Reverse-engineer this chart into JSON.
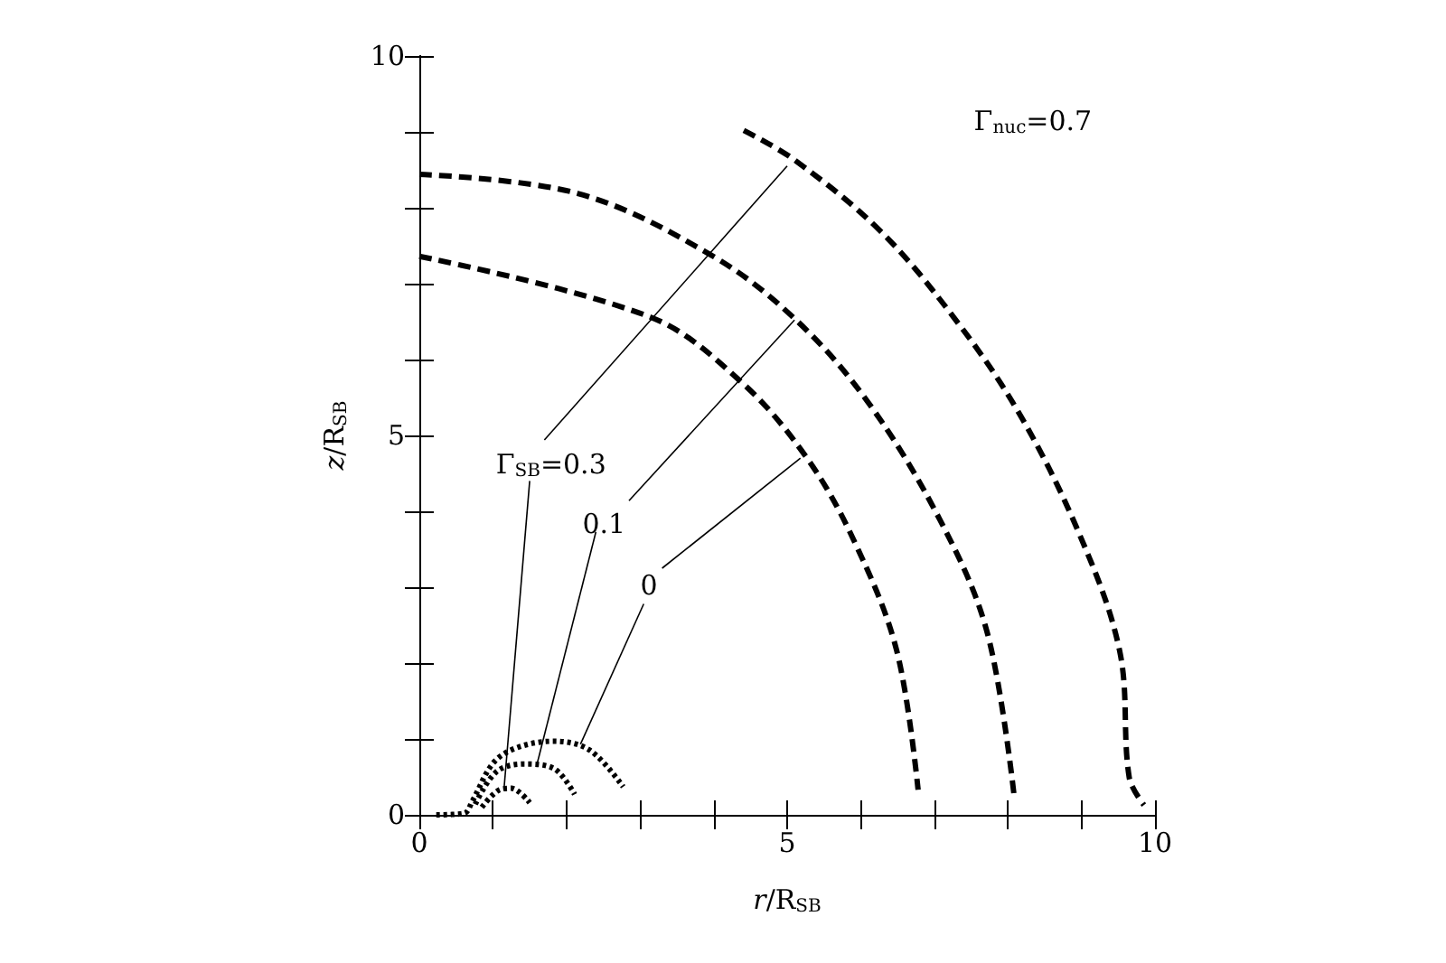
{
  "chart_data": {
    "type": "line",
    "xlabel": "r/R$_{SB}$",
    "ylabel": "z/R$_{SB}$",
    "xlim": [
      0,
      10
    ],
    "ylim": [
      0,
      10
    ],
    "xticks": [
      0,
      {
        "value": 1,
        "label": null
      },
      {
        "value": 2,
        "label": null
      },
      {
        "value": 3,
        "label": null
      },
      {
        "value": 4,
        "label": null
      },
      5,
      {
        "value": 6,
        "label": null
      },
      {
        "value": 7,
        "label": null
      },
      {
        "value": 8,
        "label": null
      },
      {
        "value": 9,
        "label": null
      },
      10
    ],
    "yticks": [
      0,
      {
        "value": 1,
        "label": null
      },
      {
        "value": 2,
        "label": null
      },
      {
        "value": 3,
        "label": null
      },
      {
        "value": 4,
        "label": null
      },
      5,
      {
        "value": 6,
        "label": null
      },
      {
        "value": 7,
        "label": null
      },
      {
        "value": 8,
        "label": null
      },
      {
        "value": 9,
        "label": null
      },
      10
    ],
    "grid": false,
    "marker": "none",
    "series": [
      {
        "color": "#000000",
        "line_style": "dashed",
        "x": [
          0,
          3.14,
          4.37,
          5.27,
          5.92,
          6.49,
          6.78
        ],
        "values": [
          7.36,
          6.56,
          5.71,
          4.7,
          3.59,
          2.16,
          0.33
        ]
      },
      {
        "color": "#000000",
        "line_style": "dashed",
        "x": [
          0,
          2.15,
          3.96,
          5.1,
          6.09,
          7.07,
          7.72,
          8.09
        ],
        "values": [
          8.44,
          8.19,
          7.38,
          6.54,
          5.45,
          3.9,
          2.4,
          0.21
        ]
      },
      {
        "color": "#000000",
        "line_style": "dashed",
        "x": [
          4.41,
          5.1,
          6.25,
          7.23,
          8.13,
          8.95,
          9.52,
          9.65,
          9.85
        ],
        "values": [
          9.02,
          8.63,
          7.71,
          6.6,
          5.33,
          3.75,
          2.16,
          0.49,
          0.13
        ]
      },
      {
        "color": "#000000",
        "line_style": "dotted",
        "x": [
          0.23,
          0.61,
          0.72,
          1.01,
          1.34,
          1.83,
          2.32,
          2.77
        ],
        "values": [
          0,
          0.02,
          0.18,
          0.69,
          0.89,
          0.97,
          0.85,
          0.37
        ]
      },
      {
        "color": "#000000",
        "line_style": "dotted",
        "x": [
          0.76,
          1.05,
          1.42,
          1.83,
          2.11
        ],
        "values": [
          0.14,
          0.57,
          0.67,
          0.61,
          0.27
        ]
      },
      {
        "color": "#000000",
        "line_style": "dotted",
        "x": [
          0.85,
          1.09,
          1.25,
          1.5
        ],
        "values": [
          0.1,
          0.33,
          0.35,
          0.16
        ]
      },
      {
        "color": "#000000",
        "line_style": "solid",
        "x": [
          1.7,
          5.0
        ],
        "values": [
          4.94,
          8.55
        ]
      },
      {
        "color": "#000000",
        "line_style": "solid",
        "x": [
          1.5,
          1.15
        ],
        "values": [
          4.4,
          0.33
        ]
      },
      {
        "color": "#000000",
        "line_style": "solid",
        "x": [
          2.85,
          5.1
        ],
        "values": [
          4.14,
          6.52
        ]
      },
      {
        "color": "#000000",
        "line_style": "solid",
        "x": [
          2.4,
          1.6
        ],
        "values": [
          3.73,
          0.67
        ]
      },
      {
        "color": "#000000",
        "line_style": "solid",
        "x": [
          3.3,
          5.18
        ],
        "values": [
          3.25,
          4.7
        ]
      },
      {
        "color": "#000000",
        "line_style": "solid",
        "x": [
          3.05,
          2.19
        ],
        "values": [
          2.78,
          0.93
        ]
      }
    ],
    "annotations": [
      "Γ$_{SB}$=0.3",
      "0.1",
      "0",
      "Γ$_{nuc}$=0.7"
    ]
  }
}
